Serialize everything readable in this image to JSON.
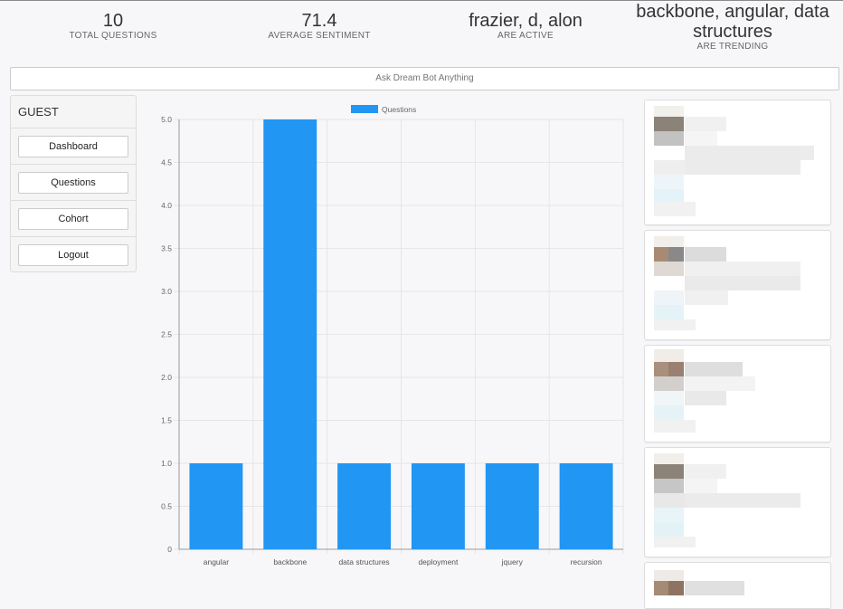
{
  "stats": [
    {
      "value": "10",
      "label": "TOTAL QUESTIONS"
    },
    {
      "value": "71.4",
      "label": "AVERAGE SENTIMENT"
    },
    {
      "value": "frazier, d, alon",
      "label": "ARE ACTIVE"
    },
    {
      "value": "backbone, angular, data structures",
      "label": "ARE TRENDING"
    }
  ],
  "search": {
    "placeholder": "Ask Dream Bot Anything"
  },
  "sidebar": {
    "user": "GUEST",
    "items": [
      {
        "label": "Dashboard"
      },
      {
        "label": "Questions"
      },
      {
        "label": "Cohort"
      },
      {
        "label": "Logout"
      }
    ]
  },
  "chart_data": {
    "type": "bar",
    "categories": [
      "angular",
      "backbone",
      "data structures",
      "deployment",
      "jquery",
      "recursion"
    ],
    "series": [
      {
        "name": "Questions",
        "values": [
          1,
          5,
          1,
          1,
          1,
          1
        ]
      }
    ],
    "ylim": [
      0,
      5
    ],
    "yticks": [
      "0",
      "0.5",
      "1.0",
      "1.5",
      "2.0",
      "2.5",
      "3.0",
      "3.5",
      "4.0",
      "4.5",
      "5.0"
    ],
    "grid": true,
    "legend": "top",
    "colors": {
      "bar": "#2196f3",
      "grid": "#e6e6e6",
      "axis": "#999999"
    }
  },
  "colors": {
    "background": "#f7f7f9",
    "accent": "#2196f3"
  }
}
